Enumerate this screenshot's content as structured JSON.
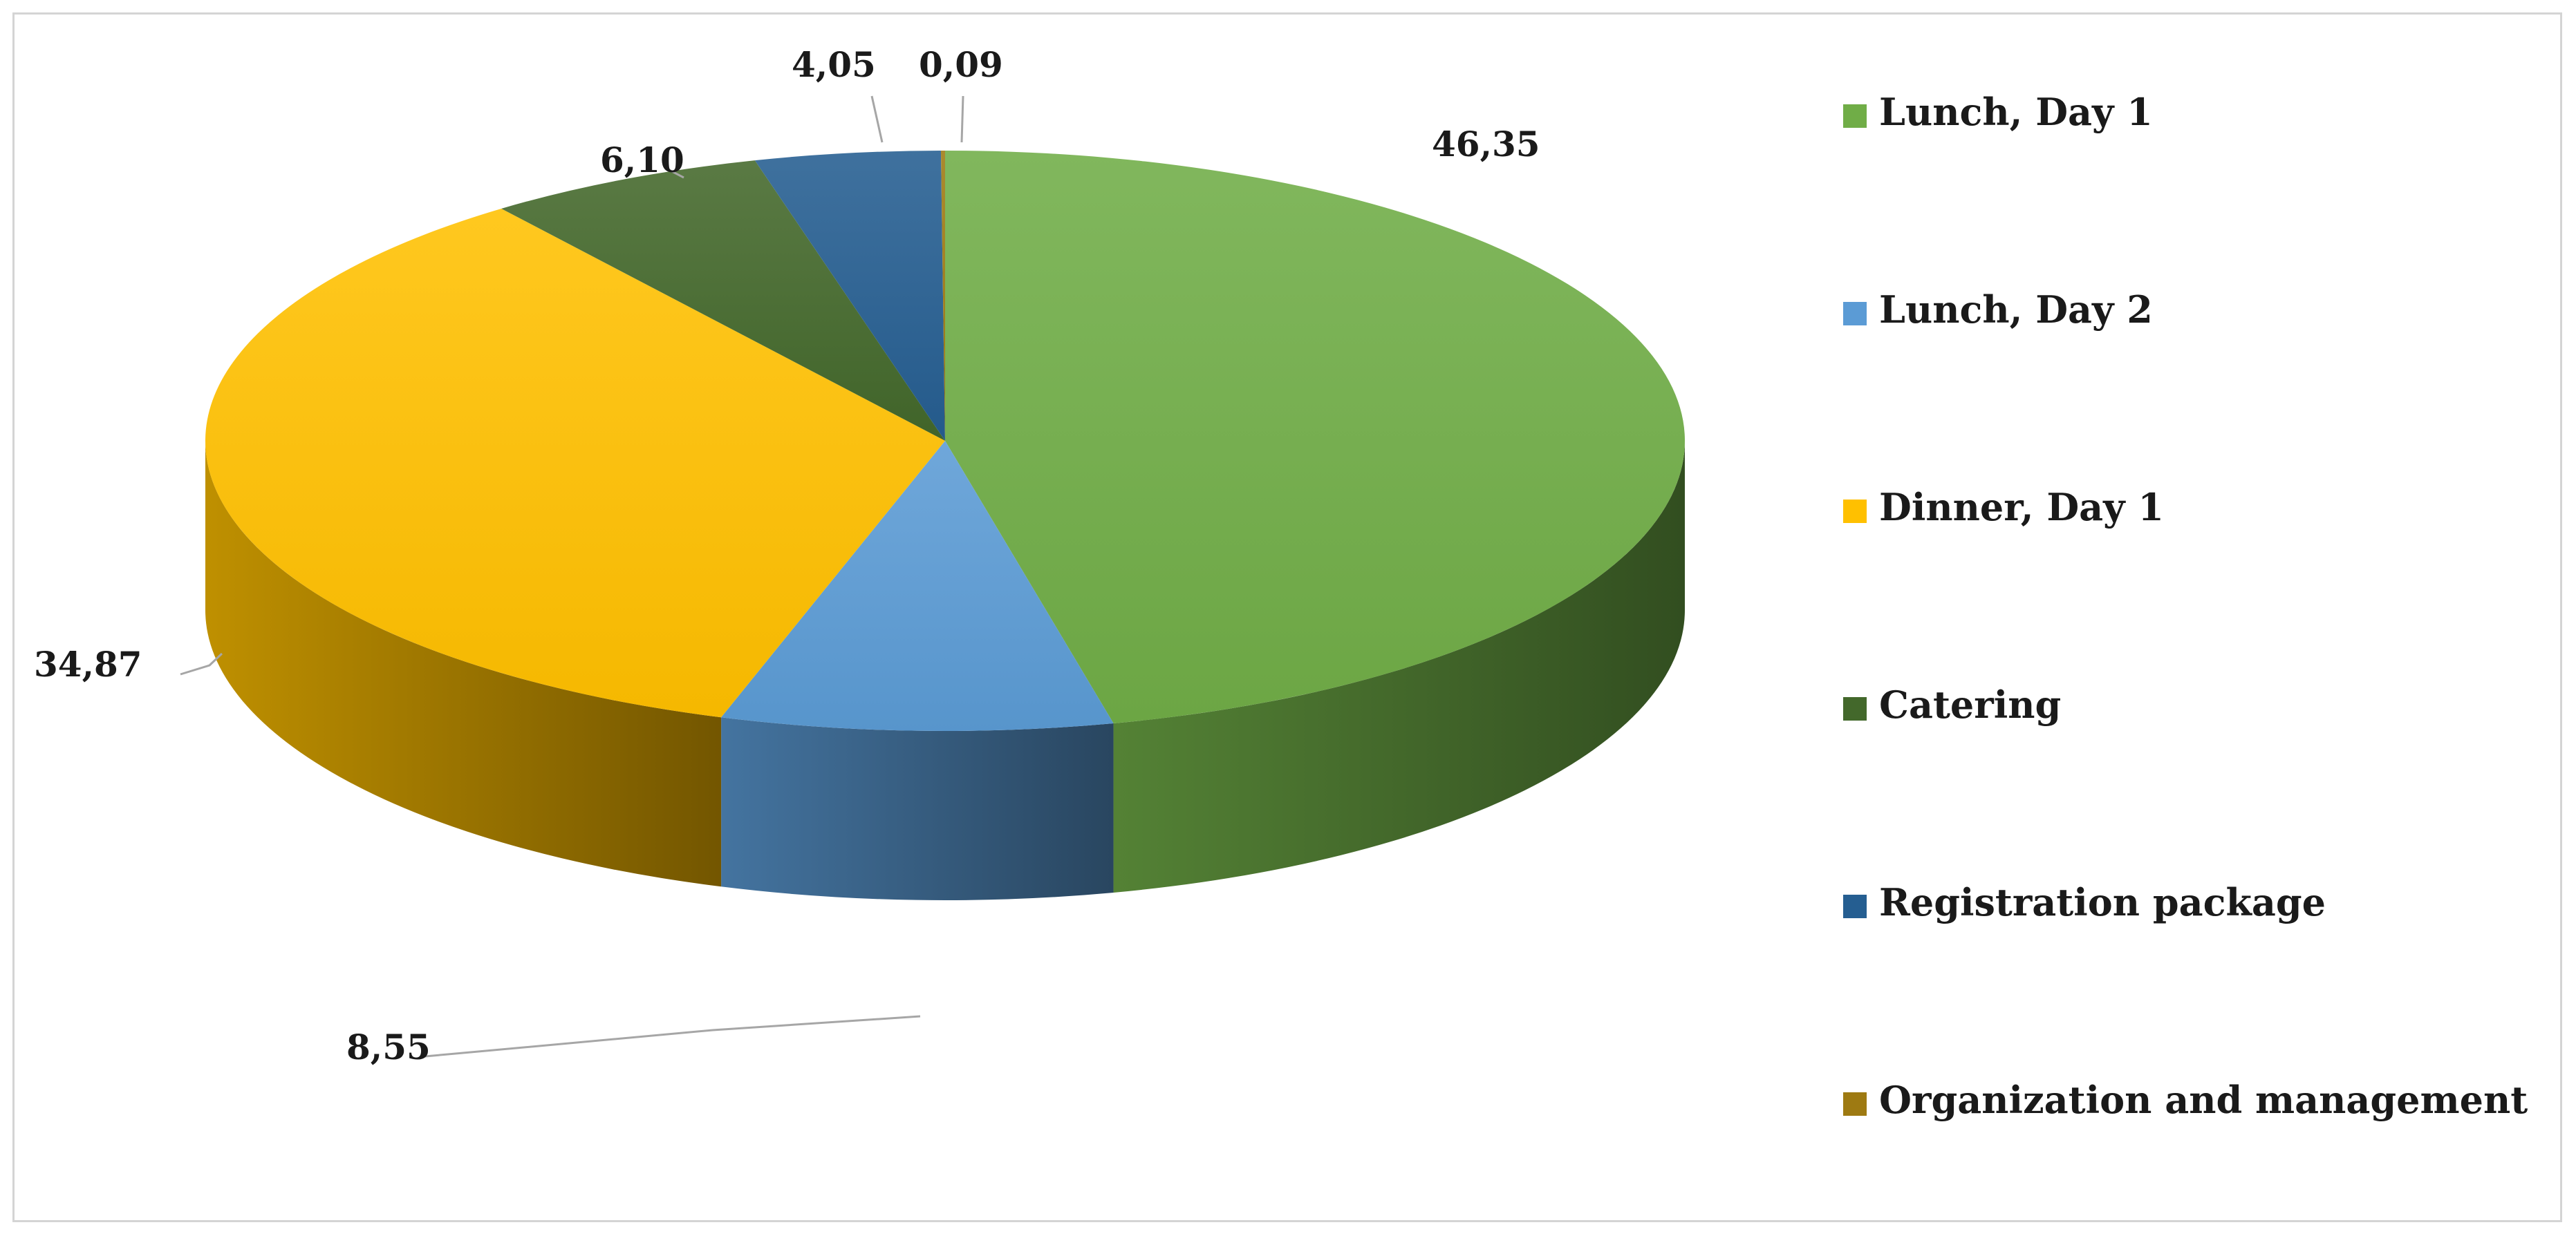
{
  "chart_data": {
    "type": "pie",
    "style": "3d",
    "categories": [
      "Lunch, Day 1",
      "Lunch, Day 2",
      "Dinner, Day 1",
      "Catering",
      "Registration package",
      "Organization and management"
    ],
    "values": [
      46.35,
      8.55,
      34.87,
      6.1,
      4.05,
      0.09
    ],
    "value_labels": [
      "46,35",
      "8,55",
      "34,87",
      "6,10",
      "4,05",
      "0,09"
    ],
    "colors": [
      "#70ad47",
      "#5b9bd5",
      "#ffc000",
      "#43682b",
      "#255e91",
      "#9e7a12"
    ],
    "legend_placement": "right",
    "title": ""
  }
}
